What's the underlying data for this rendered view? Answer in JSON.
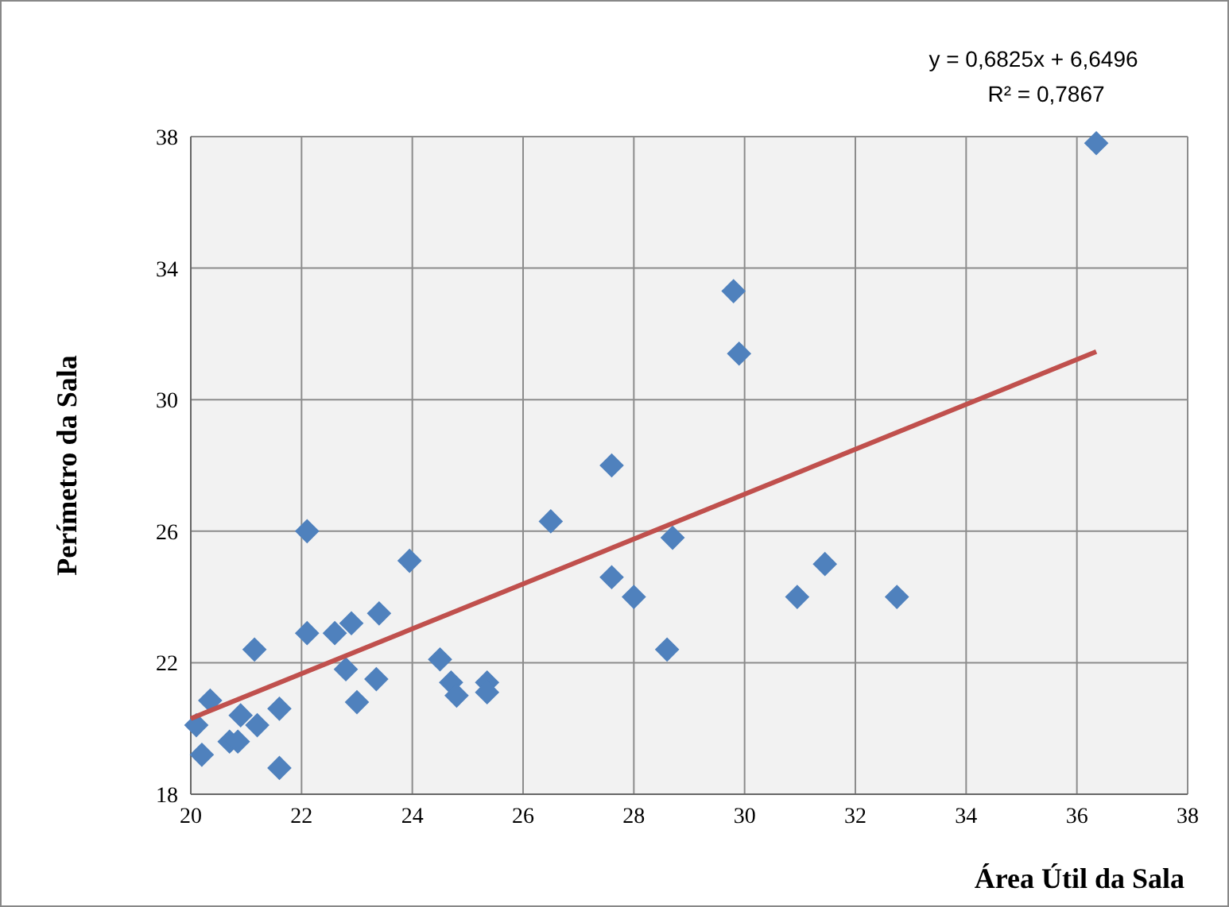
{
  "chart_data": {
    "type": "scatter",
    "xlabel": "Área Útil da Sala",
    "ylabel": "Perímetro da Sala",
    "annotations": [
      "y = 0,6825x + 6,6496",
      "R² = 0,7867"
    ],
    "xlim": [
      20,
      38
    ],
    "xticks": [
      20,
      22,
      24,
      26,
      28,
      30,
      32,
      34,
      36,
      38
    ],
    "ylim": [
      18,
      38
    ],
    "yticks": [
      18,
      22,
      26,
      30,
      34,
      38
    ],
    "grid": true,
    "marker": "diamond",
    "series": [
      {
        "color": "#4f81bd",
        "x": [
          20.1,
          20.2,
          20.35,
          20.7,
          20.85,
          20.9,
          21.2,
          21.15,
          21.6,
          21.6,
          22.1,
          22.1,
          22.6,
          22.9,
          22.8,
          23.0,
          23.4,
          23.35,
          23.95,
          24.5,
          24.7,
          24.8,
          25.35,
          25.35,
          26.5,
          27.6,
          27.6,
          28.0,
          28.6,
          28.7,
          29.8,
          29.9,
          30.95,
          31.45,
          32.75,
          36.35
        ],
        "values": [
          20.1,
          19.2,
          20.85,
          19.6,
          19.6,
          20.4,
          20.1,
          22.4,
          20.6,
          18.8,
          26.0,
          22.9,
          22.9,
          23.2,
          21.8,
          20.8,
          23.5,
          21.5,
          25.1,
          22.1,
          21.4,
          21.0,
          21.4,
          21.1,
          26.3,
          28.0,
          24.6,
          24.0,
          22.4,
          25.8,
          33.3,
          31.4,
          24.0,
          25.0,
          24.0,
          37.8
        ]
      },
      {
        "type": "line",
        "color": "#c0504d",
        "line_style": "solid",
        "marker": "none",
        "x": [
          20,
          36.35
        ],
        "values": [
          20.3,
          31.46
        ]
      }
    ]
  }
}
